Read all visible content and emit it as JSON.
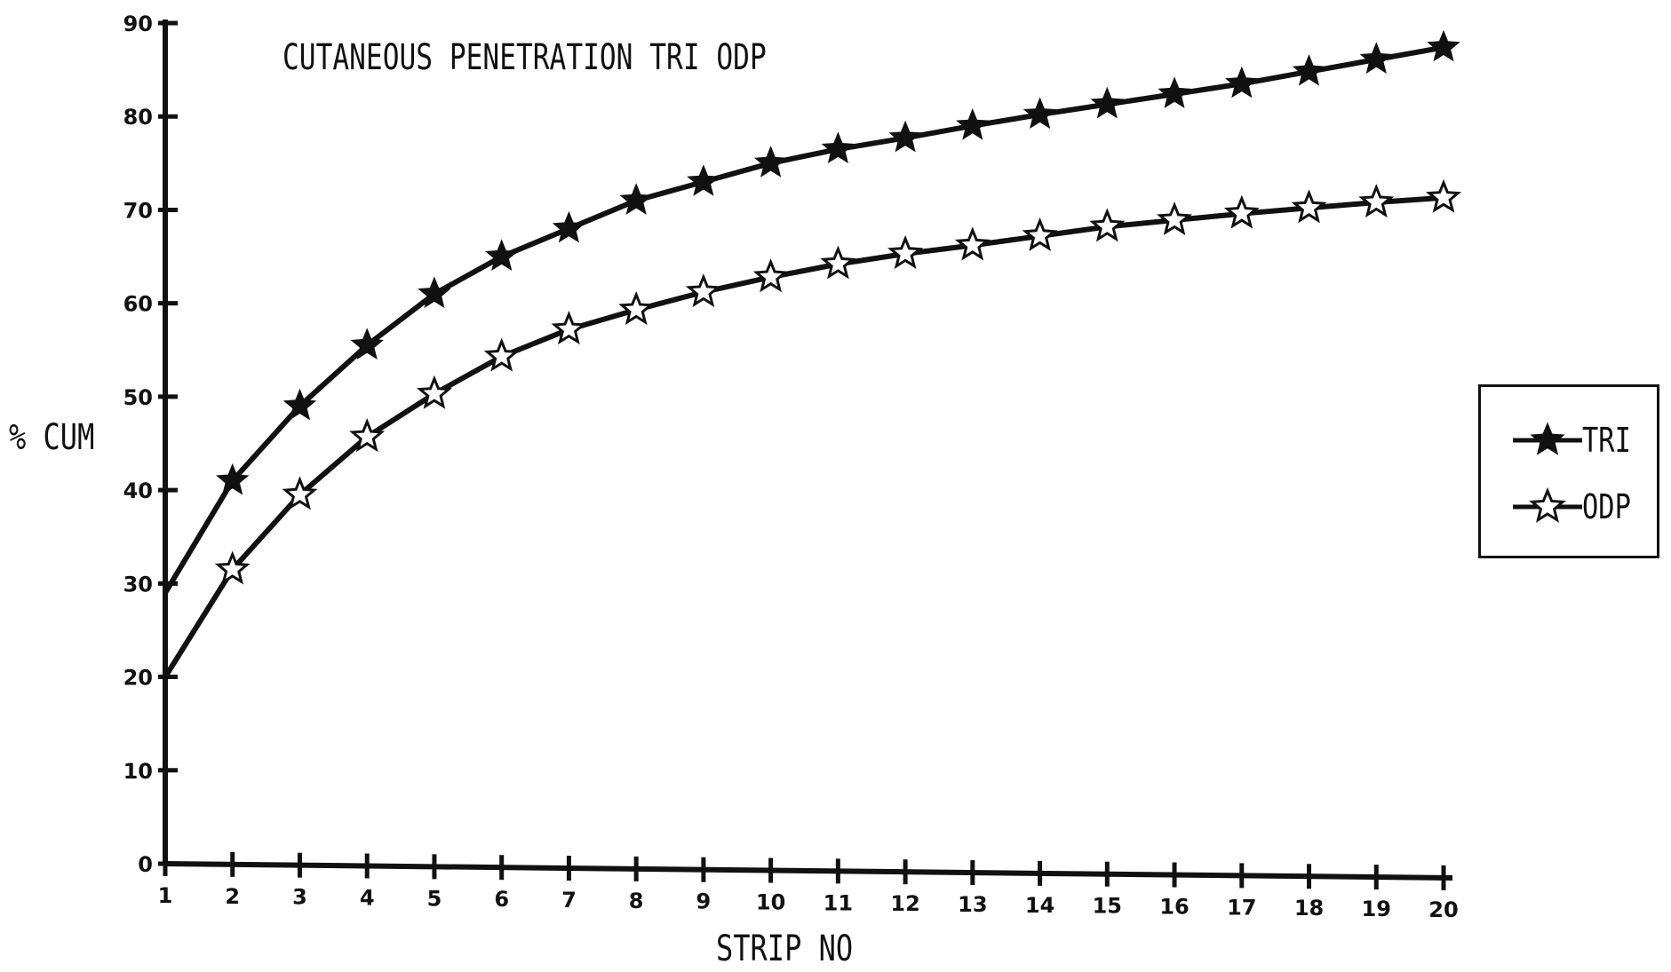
{
  "chart_data": {
    "type": "line",
    "title": "CUTANEOUS PENETRATION TRI ODP",
    "xlabel": "STRIP NO",
    "ylabel": "% CUM",
    "x": [
      1,
      2,
      3,
      4,
      5,
      6,
      7,
      8,
      9,
      10,
      11,
      12,
      13,
      14,
      15,
      16,
      17,
      18,
      19,
      20
    ],
    "xlim": [
      1,
      20
    ],
    "ylim": [
      0,
      90
    ],
    "yticks": [
      0,
      10,
      20,
      30,
      40,
      50,
      60,
      70,
      80,
      90
    ],
    "grid": false,
    "legend_position": "right",
    "series": [
      {
        "name": "TRI",
        "marker": "filled-star",
        "color": "#111111",
        "values": [
          29,
          41,
          49,
          55.5,
          61,
          65,
          68,
          71,
          73,
          75,
          76.5,
          77.7,
          79,
          80.2,
          81.3,
          82.4,
          83.5,
          84.8,
          86.1,
          87.4
        ]
      },
      {
        "name": "ODP",
        "marker": "open-star",
        "color": "#111111",
        "values": [
          20,
          31.5,
          39.5,
          45.7,
          50.3,
          54.3,
          57.2,
          59.3,
          61.2,
          62.8,
          64.2,
          65.3,
          66.2,
          67.2,
          68.2,
          68.9,
          69.6,
          70.2,
          70.8,
          71.3
        ]
      }
    ]
  }
}
